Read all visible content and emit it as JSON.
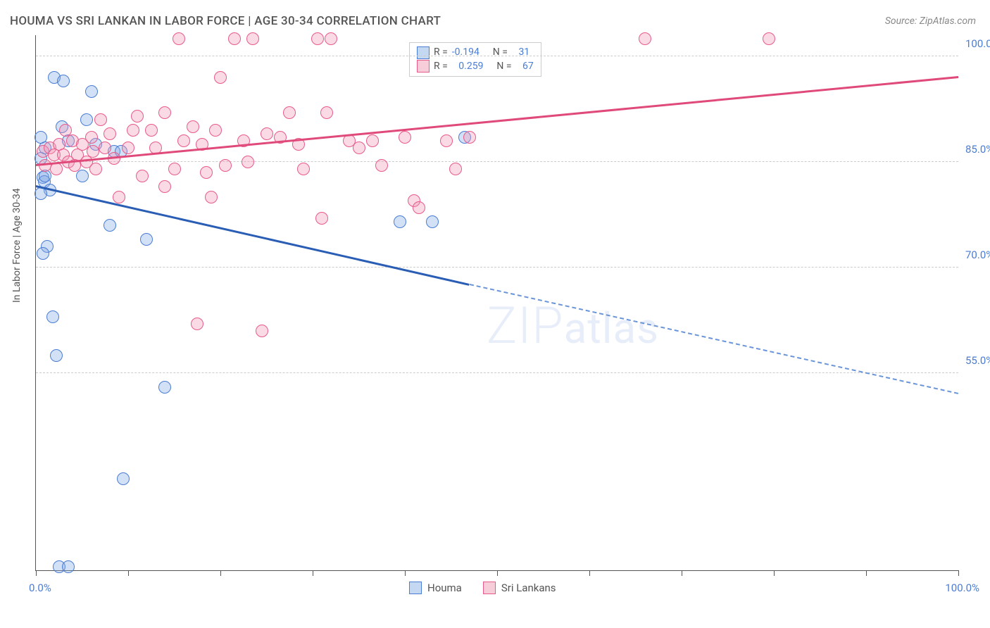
{
  "title": "HOUMA VS SRI LANKAN IN LABOR FORCE | AGE 30-34 CORRELATION CHART",
  "source": "Source: ZipAtlas.com",
  "y_axis_label": "In Labor Force | Age 30-34",
  "watermark_text": "ZIPatlas",
  "chart": {
    "type": "scatter",
    "background_color": "#ffffff",
    "grid_color": "#cccccc",
    "axis_color": "#555555",
    "label_color": "#555555",
    "tick_label_color": "#4a7dd4",
    "tick_label_fontsize": 15,
    "title_fontsize": 17,
    "xlim": [
      0,
      100
    ],
    "ylim": [
      27,
      103
    ],
    "x_ticks": [
      0,
      10,
      20,
      30,
      40,
      50,
      60,
      70,
      80,
      90,
      100
    ],
    "x_tick_labels_shown": {
      "0": "0.0%",
      "100": "100.0%"
    },
    "y_gridlines": [
      55,
      70,
      85,
      100
    ],
    "y_tick_labels": {
      "55": "55.0%",
      "70": "70.0%",
      "85": "85.0%",
      "100": "100.0%"
    },
    "point_radius": 8,
    "point_fill_opacity": 0.35,
    "point_stroke_width": 1.5,
    "series": [
      {
        "name": "Houma",
        "color_stroke": "#4a7dd4",
        "color_fill": "rgba(130,170,230,0.35)",
        "legend_swatch_fill": "#c5d8f2",
        "legend_swatch_stroke": "#4a7dd4",
        "r_value": "-0.194",
        "n_value": "31",
        "trend": {
          "x1": 0,
          "y1": 81.5,
          "x_solid_end": 47,
          "y_solid_end": 67.5,
          "x2": 100,
          "y2": 52,
          "solid_color": "#2a5db4",
          "dashed_color": "#6a95d8"
        },
        "points": [
          {
            "x": 0.5,
            "y": 85.5
          },
          {
            "x": 0.8,
            "y": 82.8
          },
          {
            "x": 0.9,
            "y": 82.2
          },
          {
            "x": 1.0,
            "y": 83.0
          },
          {
            "x": 2.0,
            "y": 97.0
          },
          {
            "x": 3.0,
            "y": 96.5
          },
          {
            "x": 1.5,
            "y": 81.0
          },
          {
            "x": 6.0,
            "y": 95.0
          },
          {
            "x": 5.5,
            "y": 91.0
          },
          {
            "x": 1.2,
            "y": 73.0
          },
          {
            "x": 0.8,
            "y": 72.0
          },
          {
            "x": 6.5,
            "y": 87.5
          },
          {
            "x": 8.5,
            "y": 86.5
          },
          {
            "x": 1.8,
            "y": 63.0
          },
          {
            "x": 2.2,
            "y": 57.5
          },
          {
            "x": 8.0,
            "y": 76.0
          },
          {
            "x": 12.0,
            "y": 74.0
          },
          {
            "x": 9.5,
            "y": 40.0
          },
          {
            "x": 14.0,
            "y": 53.0
          },
          {
            "x": 2.5,
            "y": 27.5
          },
          {
            "x": 3.5,
            "y": 27.5
          },
          {
            "x": 39.5,
            "y": 76.5
          },
          {
            "x": 43.0,
            "y": 76.5
          },
          {
            "x": 46.5,
            "y": 88.5
          },
          {
            "x": 9.2,
            "y": 86.5
          },
          {
            "x": 1.0,
            "y": 87.0
          },
          {
            "x": 2.8,
            "y": 90.0
          },
          {
            "x": 3.5,
            "y": 88.0
          },
          {
            "x": 0.5,
            "y": 88.5
          },
          {
            "x": 0.5,
            "y": 80.5
          },
          {
            "x": 5.0,
            "y": 83.0
          }
        ]
      },
      {
        "name": "Sri Lankans",
        "color_stroke": "#e85a8a",
        "color_fill": "rgba(240,150,180,0.35)",
        "legend_swatch_fill": "#f7cdd9",
        "legend_swatch_stroke": "#e85a8a",
        "r_value": "0.259",
        "n_value": "67",
        "trend": {
          "x1": 0,
          "y1": 84.5,
          "x_solid_end": 100,
          "y_solid_end": 97.0,
          "x2": 100,
          "y2": 97.0,
          "solid_color": "#e04a7a",
          "dashed_color": "#e04a7a"
        },
        "points": [
          {
            "x": 0.8,
            "y": 86.5
          },
          {
            "x": 1.5,
            "y": 87.0
          },
          {
            "x": 2.0,
            "y": 86.0
          },
          {
            "x": 2.5,
            "y": 87.5
          },
          {
            "x": 3.0,
            "y": 86.0
          },
          {
            "x": 3.5,
            "y": 85.0
          },
          {
            "x": 4.0,
            "y": 88.0
          },
          {
            "x": 4.5,
            "y": 86.0
          },
          {
            "x": 5.0,
            "y": 87.5
          },
          {
            "x": 5.5,
            "y": 85.0
          },
          {
            "x": 6.0,
            "y": 88.5
          },
          {
            "x": 6.5,
            "y": 84.0
          },
          {
            "x": 7.0,
            "y": 91.0
          },
          {
            "x": 8.0,
            "y": 89.0
          },
          {
            "x": 9.0,
            "y": 80.0
          },
          {
            "x": 11.0,
            "y": 91.5
          },
          {
            "x": 12.5,
            "y": 89.5
          },
          {
            "x": 14.0,
            "y": 92.0
          },
          {
            "x": 15.0,
            "y": 84.0
          },
          {
            "x": 15.5,
            "y": 102.5
          },
          {
            "x": 17.0,
            "y": 90.0
          },
          {
            "x": 18.0,
            "y": 87.5
          },
          {
            "x": 18.5,
            "y": 83.5
          },
          {
            "x": 19.5,
            "y": 89.5
          },
          {
            "x": 20.0,
            "y": 97.0
          },
          {
            "x": 21.5,
            "y": 102.5
          },
          {
            "x": 23.5,
            "y": 102.5
          },
          {
            "x": 22.5,
            "y": 88.0
          },
          {
            "x": 14.0,
            "y": 81.5
          },
          {
            "x": 11.5,
            "y": 83.0
          },
          {
            "x": 17.5,
            "y": 62.0
          },
          {
            "x": 24.5,
            "y": 61.0
          },
          {
            "x": 25.0,
            "y": 89.0
          },
          {
            "x": 26.5,
            "y": 88.5
          },
          {
            "x": 27.5,
            "y": 92.0
          },
          {
            "x": 28.5,
            "y": 87.5
          },
          {
            "x": 29.0,
            "y": 84.0
          },
          {
            "x": 30.5,
            "y": 102.5
          },
          {
            "x": 32.0,
            "y": 102.5
          },
          {
            "x": 31.5,
            "y": 92.0
          },
          {
            "x": 34.0,
            "y": 88.0
          },
          {
            "x": 35.0,
            "y": 87.0
          },
          {
            "x": 36.5,
            "y": 88.0
          },
          {
            "x": 31.0,
            "y": 77.0
          },
          {
            "x": 19.0,
            "y": 80.0
          },
          {
            "x": 41.0,
            "y": 79.5
          },
          {
            "x": 41.5,
            "y": 78.5
          },
          {
            "x": 44.5,
            "y": 88.0
          },
          {
            "x": 47.0,
            "y": 88.5
          },
          {
            "x": 45.5,
            "y": 84.0
          },
          {
            "x": 66.0,
            "y": 102.5
          },
          {
            "x": 79.5,
            "y": 102.5
          },
          {
            "x": 7.5,
            "y": 87.0
          },
          {
            "x": 10.0,
            "y": 87.0
          },
          {
            "x": 13.0,
            "y": 87.0
          },
          {
            "x": 3.2,
            "y": 89.5
          },
          {
            "x": 1.0,
            "y": 84.5
          },
          {
            "x": 2.2,
            "y": 84.0
          },
          {
            "x": 4.2,
            "y": 84.5
          },
          {
            "x": 6.2,
            "y": 86.5
          },
          {
            "x": 8.5,
            "y": 85.5
          },
          {
            "x": 40.0,
            "y": 88.5
          },
          {
            "x": 10.5,
            "y": 89.5
          },
          {
            "x": 16.0,
            "y": 88.0
          },
          {
            "x": 20.5,
            "y": 84.5
          },
          {
            "x": 23.0,
            "y": 85.0
          },
          {
            "x": 37.5,
            "y": 84.5
          }
        ]
      }
    ]
  },
  "legend_top": {
    "r_label": "R =",
    "n_label": "N ="
  },
  "legend_bottom": {
    "items": [
      "Houma",
      "Sri Lankans"
    ]
  }
}
